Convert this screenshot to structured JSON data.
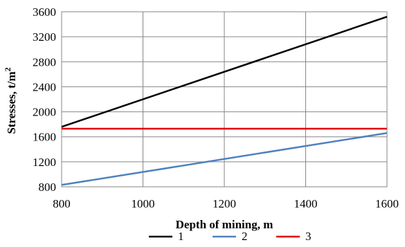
{
  "chart_data": {
    "type": "line",
    "xlabel": "Depth of mining, m",
    "ylabel": "Stresses, t/m",
    "ylabel_superscript": "2",
    "xlim": [
      800,
      1600
    ],
    "ylim": [
      800,
      3600
    ],
    "xticks": [
      800,
      1000,
      1200,
      1400,
      1600
    ],
    "yticks": [
      800,
      1200,
      1600,
      2000,
      2400,
      2800,
      3200,
      3600
    ],
    "grid": true,
    "legend_position": "bottom",
    "series": [
      {
        "name": "1",
        "color": "#000000",
        "x": [
          800,
          1600
        ],
        "y": [
          1760,
          3520
        ]
      },
      {
        "name": "2",
        "color": "#4f81bd",
        "x": [
          800,
          1600
        ],
        "y": [
          830,
          1660
        ]
      },
      {
        "name": "3",
        "color": "#e00000",
        "x": [
          800,
          1600
        ],
        "y": [
          1730,
          1730
        ]
      }
    ]
  }
}
